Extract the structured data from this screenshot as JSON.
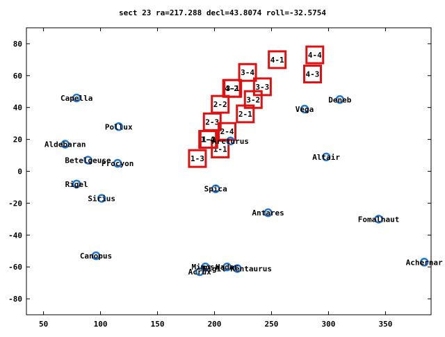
{
  "chart_data": {
    "type": "scatter",
    "title": "sect 23 ra=217.288 decl=43.8074 roll=-32.5754",
    "xlabel": "",
    "ylabel": "",
    "xlim": [
      35,
      390
    ],
    "ylim": [
      -90,
      90
    ],
    "x_ticks": [
      50,
      100,
      150,
      200,
      250,
      300,
      350
    ],
    "y_ticks": [
      -80,
      -60,
      -40,
      -20,
      0,
      20,
      40,
      60,
      80
    ],
    "grid": false,
    "legend": "none",
    "colors": {
      "star_marker": "#1e78d2",
      "sector_box": "#e01010",
      "axis": "#000000"
    },
    "stars": [
      {
        "name": "Capella",
        "x": 79,
        "y": 46
      },
      {
        "name": "Pollux",
        "x": 116,
        "y": 28
      },
      {
        "name": "Aldebaran",
        "x": 69,
        "y": 17
      },
      {
        "name": "Betelgeuse",
        "x": 89,
        "y": 7
      },
      {
        "name": "Procyon",
        "x": 115,
        "y": 5
      },
      {
        "name": "Rigel",
        "x": 79,
        "y": -8
      },
      {
        "name": "Sirius",
        "x": 101,
        "y": -17
      },
      {
        "name": "Canopus",
        "x": 96,
        "y": -53
      },
      {
        "name": "Arcturus",
        "x": 214,
        "y": 19
      },
      {
        "name": "Spica",
        "x": 201,
        "y": -11
      },
      {
        "name": "Antares",
        "x": 247,
        "y": -26
      },
      {
        "name": "Vega",
        "x": 279,
        "y": 39
      },
      {
        "name": "Deneb",
        "x": 310,
        "y": 45
      },
      {
        "name": "Altair",
        "x": 298,
        "y": 9
      },
      {
        "name": "Fomalhaut",
        "x": 344,
        "y": -30
      },
      {
        "name": "Achernar",
        "x": 384,
        "y": -57
      },
      {
        "name": "Mimosa",
        "x": 192,
        "y": -60
      },
      {
        "name": "Hadar",
        "x": 211,
        "y": -60
      },
      {
        "name": "Acrux",
        "x": 187,
        "y": -63
      },
      {
        "name": "Rigil Kentaurus",
        "x": 220,
        "y": -61
      }
    ],
    "star_labels": [
      {
        "text": "Capella",
        "x": 79,
        "y": 46
      },
      {
        "text": "Pollux",
        "x": 116,
        "y": 28
      },
      {
        "text": "Aldebaran",
        "x": 69,
        "y": 17
      },
      {
        "text": "Betelgeuse",
        "x": 89,
        "y": 7
      },
      {
        "text": "Procyon",
        "x": 115,
        "y": 5
      },
      {
        "text": "Rigel",
        "x": 79,
        "y": -8
      },
      {
        "text": "Sirius",
        "x": 101,
        "y": -17
      },
      {
        "text": "Canopus",
        "x": 96,
        "y": -53
      },
      {
        "text": "Arcturus",
        "x": 214,
        "y": 19
      },
      {
        "text": "Spica",
        "x": 201,
        "y": -11
      },
      {
        "text": "Antares",
        "x": 247,
        "y": -26
      },
      {
        "text": "Vega",
        "x": 279,
        "y": 39
      },
      {
        "text": "Deneb",
        "x": 310,
        "y": 45
      },
      {
        "text": "Altair",
        "x": 298,
        "y": 9
      },
      {
        "text": "Fomalhaut",
        "x": 344,
        "y": -30
      },
      {
        "text": "Achernar",
        "x": 384,
        "y": -57
      },
      {
        "text": "Mimosa",
        "x": 192,
        "y": -60
      },
      {
        "text": "Hadar",
        "x": 211,
        "y": -60
      },
      {
        "text": "Acrux",
        "x": 187,
        "y": -63
      },
      {
        "text": "Rigil Kentaurus",
        "x": 220,
        "y": -61
      }
    ],
    "sectors": [
      {
        "label": "1-1",
        "x": 205,
        "y": 14
      },
      {
        "label": "1-2",
        "x": 195,
        "y": 20
      },
      {
        "label": "1-3",
        "x": 185,
        "y": 8
      },
      {
        "label": "1-4",
        "x": 194,
        "y": 20
      },
      {
        "label": "2-1",
        "x": 227,
        "y": 36
      },
      {
        "label": "2-2",
        "x": 205,
        "y": 42
      },
      {
        "label": "2-3",
        "x": 198,
        "y": 31
      },
      {
        "label": "2-4",
        "x": 211,
        "y": 25
      },
      {
        "label": "3-1",
        "x": 216,
        "y": 52
      },
      {
        "label": "3-2",
        "x": 234,
        "y": 45
      },
      {
        "label": "3-3",
        "x": 242,
        "y": 53
      },
      {
        "label": "3-4",
        "x": 229,
        "y": 62
      },
      {
        "label": "4-1",
        "x": 255,
        "y": 70
      },
      {
        "label": "4-2",
        "x": 215,
        "y": 52
      },
      {
        "label": "4-3",
        "x": 286,
        "y": 61
      },
      {
        "label": "4-4",
        "x": 288,
        "y": 73
      }
    ]
  }
}
